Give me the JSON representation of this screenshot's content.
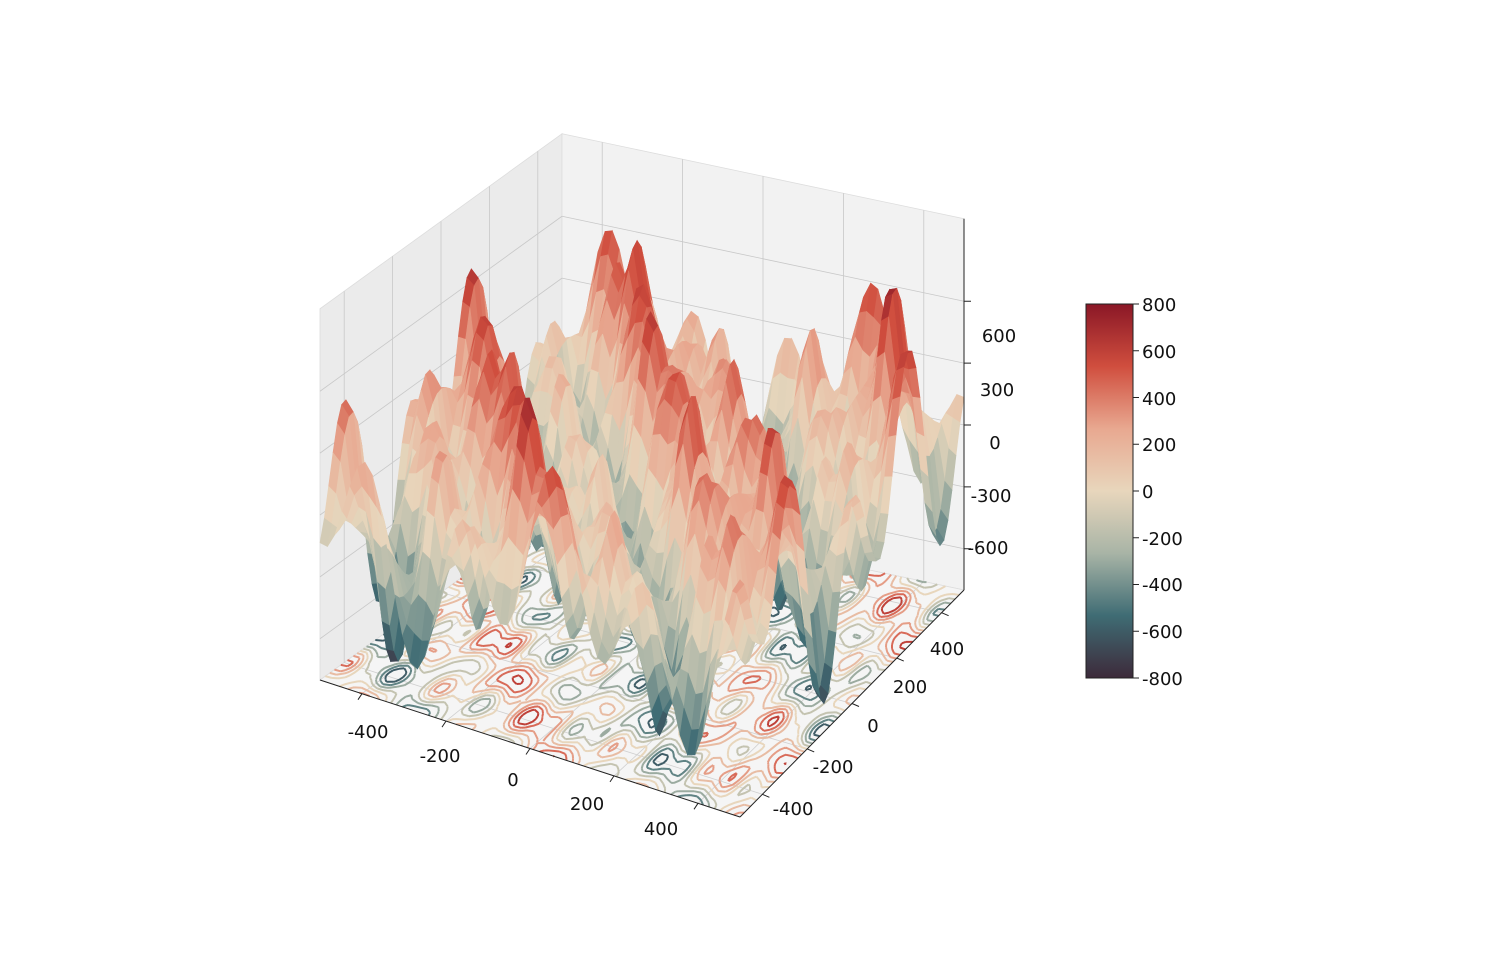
{
  "chart_data": {
    "type": "surface3d",
    "title": "",
    "xlabel": "",
    "ylabel": "",
    "zlabel": "",
    "xlim": [
      -500,
      500
    ],
    "ylim": [
      -500,
      500
    ],
    "zlim": [
      -800,
      800
    ],
    "x_ticks": [
      "-400",
      "-200",
      "0",
      "200",
      "400"
    ],
    "y_ticks": [
      "-400",
      "-200",
      "0",
      "200",
      "400"
    ],
    "z_ticks": [
      "-600",
      "-300",
      "0",
      "300",
      "600"
    ],
    "z_tick_values": [
      -600,
      -300,
      0,
      300,
      600
    ],
    "function": "z = 400*(sin(2*pi*x/220)*cos(2*pi*y/260)) + 250*sin(2*pi*(x+y)/600) + 150*cos(2*pi*x/70)*sin(2*pi*y/500), approximate shape estimated from figure",
    "grid": true,
    "contour_projection": "bottom (z-offset floor)",
    "colorbar": {
      "min": -800,
      "max": 800,
      "ticks": [
        "800",
        "600",
        "400",
        "200",
        "0",
        "-200",
        "-400",
        "-600",
        "-800"
      ],
      "tick_values": [
        800,
        600,
        400,
        200,
        0,
        -200,
        -400,
        -600,
        -800
      ],
      "colormap": [
        "#3d2a3a",
        "#3f6c74",
        "#a8b4a6",
        "#e8d6bc",
        "#e8a890",
        "#d04e3e",
        "#8a1726"
      ]
    }
  }
}
